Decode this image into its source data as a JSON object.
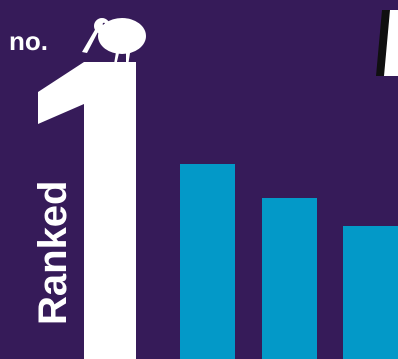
{
  "badge": {
    "prefix": "no.",
    "rank_number": "1",
    "vertical_label": "Ranked"
  },
  "colors": {
    "background": "#361b59",
    "bars": "#0399c8",
    "text": "#ffffff"
  },
  "icons": {
    "bird": "kiwi-bird-icon",
    "corner": "partial-glyph"
  }
}
